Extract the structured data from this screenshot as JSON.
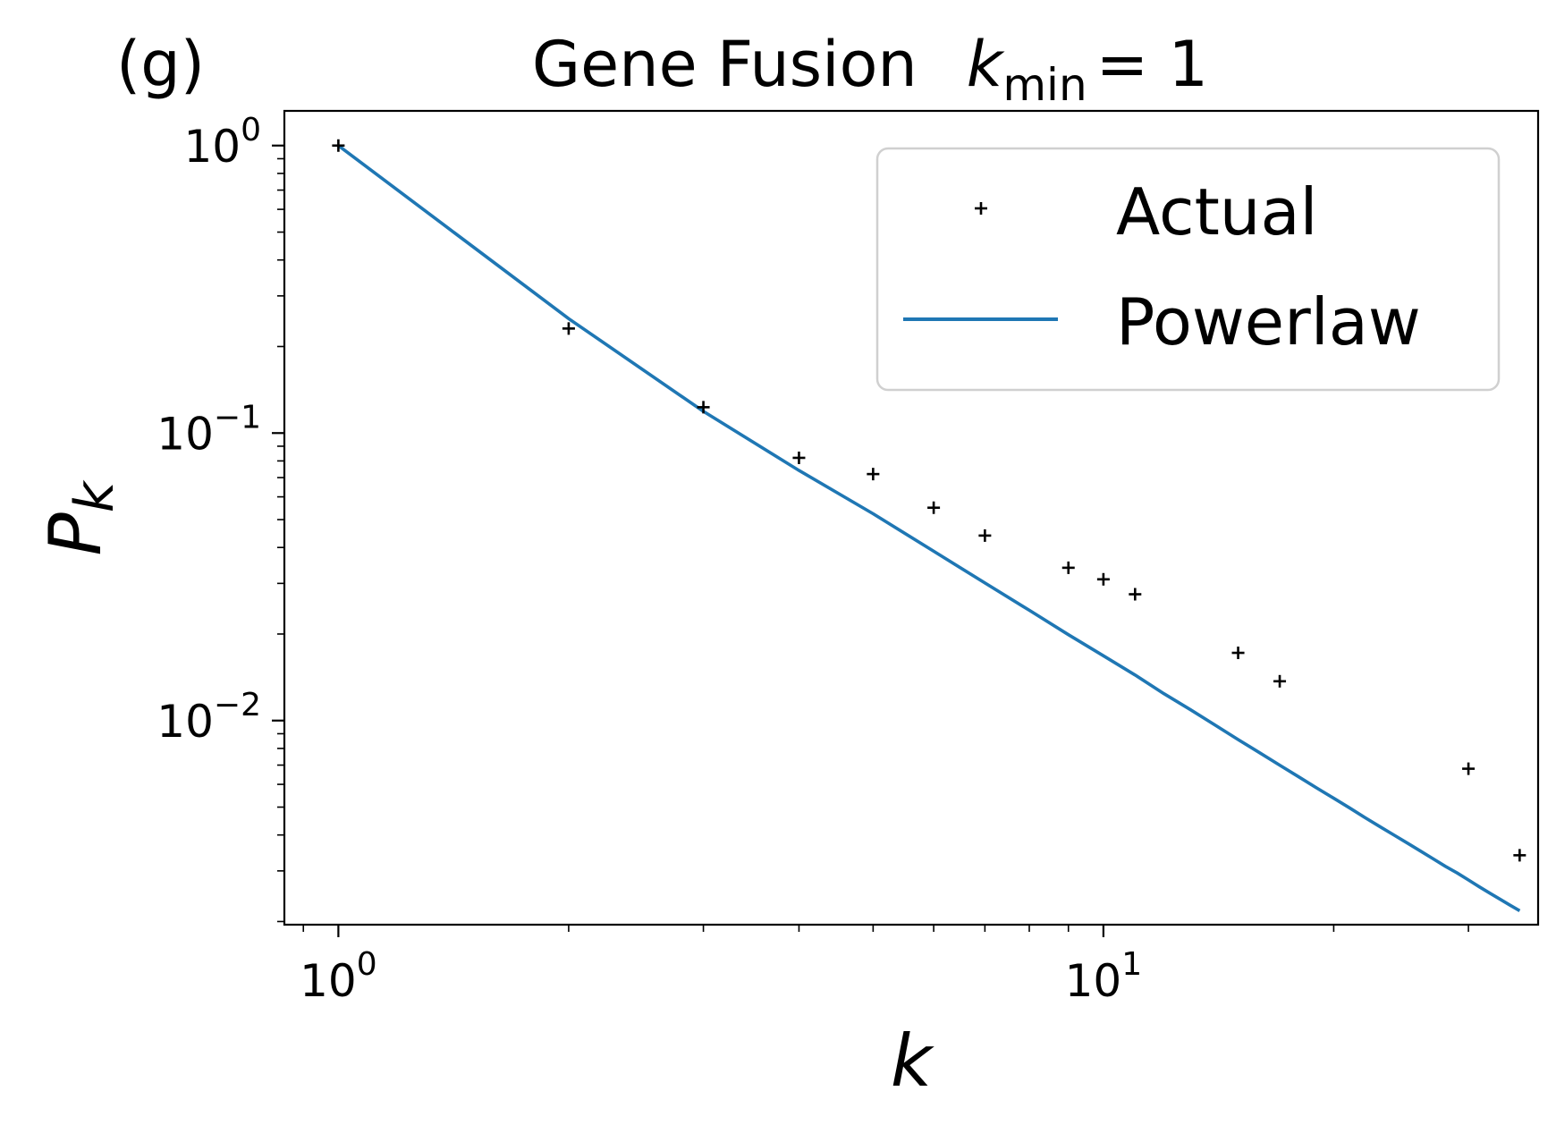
{
  "chart_data": {
    "type": "scatter",
    "panel_label": "(g)",
    "title": "Gene Fusion",
    "title_math": {
      "base": "k",
      "sub": "min",
      "rest": "= 1"
    },
    "xlabel": "k",
    "ylabel": {
      "base": "P",
      "sub": "k"
    },
    "xscale": "log",
    "yscale": "log",
    "xlim": [
      0.85,
      37
    ],
    "ylim": [
      0.00195,
      1.32
    ],
    "x_ticks": [
      {
        "value": 1,
        "base": "10",
        "exp": "0"
      },
      {
        "value": 10,
        "base": "10",
        "exp": "1"
      }
    ],
    "y_ticks": [
      {
        "value": 1,
        "base": "10",
        "exp": "0"
      },
      {
        "value": 0.1,
        "base": "10",
        "exp": "−1"
      },
      {
        "value": 0.01,
        "base": "10",
        "exp": "−2"
      }
    ],
    "grid": false,
    "legend": {
      "position": "top-right"
    },
    "series": [
      {
        "name": "Actual",
        "kind": "marker",
        "marker": "+",
        "color": "#000000",
        "x": [
          1,
          2,
          3,
          4,
          5,
          6,
          7,
          9,
          10,
          11,
          15,
          17,
          30,
          35
        ],
        "y": [
          1.0,
          0.231,
          0.123,
          0.082,
          0.072,
          0.055,
          0.044,
          0.034,
          0.031,
          0.0275,
          0.0172,
          0.0137,
          0.0068,
          0.0034
        ]
      },
      {
        "name": "Powerlaw",
        "kind": "line",
        "color": "#1f77b4",
        "x": [
          1,
          2,
          3,
          4,
          5,
          6,
          7,
          8,
          9,
          10,
          11,
          12,
          13,
          14,
          15,
          16,
          17,
          18,
          19,
          20,
          21,
          22,
          23,
          24,
          25,
          26,
          27,
          28,
          29,
          30,
          31,
          32,
          33,
          34,
          35
        ],
        "y": [
          1.0,
          0.25,
          0.119,
          0.0741,
          0.0524,
          0.0388,
          0.0301,
          0.0242,
          0.0199,
          0.0168,
          0.0144,
          0.0124,
          0.0109,
          0.00964,
          0.00859,
          0.00773,
          0.007,
          0.00637,
          0.00583,
          0.00537,
          0.00496,
          0.00459,
          0.00427,
          0.00399,
          0.00374,
          0.00351,
          0.0033,
          0.00311,
          0.00295,
          0.00279,
          0.00264,
          0.00251,
          0.00239,
          0.00228,
          0.00218
        ]
      }
    ]
  }
}
